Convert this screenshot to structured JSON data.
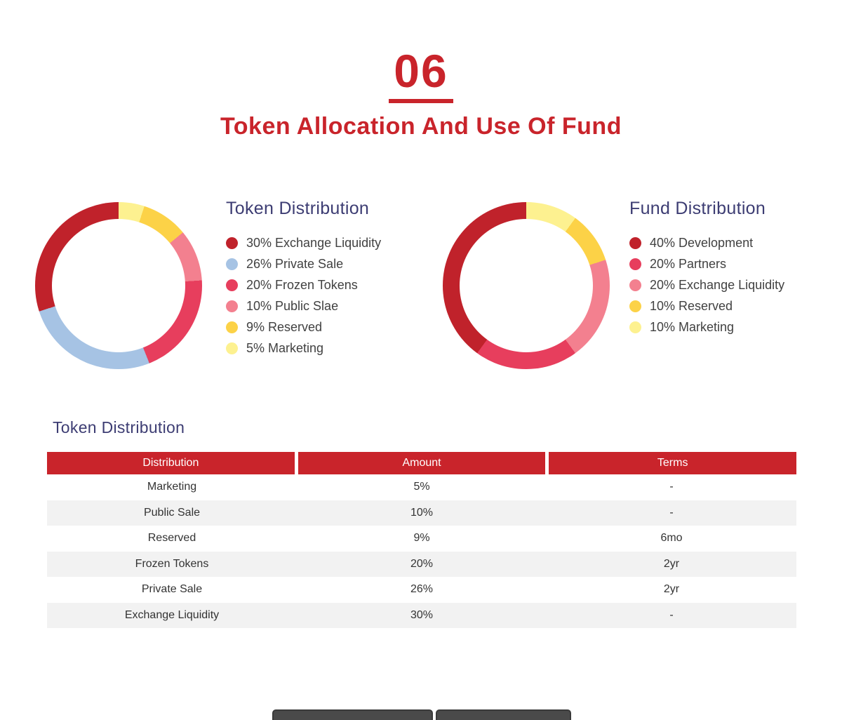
{
  "header": {
    "section_number": "06",
    "title": "Token Allocation And Use Of Fund"
  },
  "colors": {
    "accent_red": "#c9242b",
    "heading_navy": "#3d3d73",
    "legend_text": "#414141",
    "table_header_bg": "#c9242b",
    "table_row_alt_bg": "#f2f2f2",
    "footer_button_gray": "#4a4a4a"
  },
  "chart_data": [
    {
      "type": "pie",
      "subtype": "donut",
      "title": "Token Distribution",
      "legend_position": "right",
      "arc_note": "segments drawn clockwise from 12 o'clock in reverse legend order (smallest first)",
      "segments": [
        {
          "label": "Exchange Liquidity",
          "value": 30,
          "color": "#c0222b"
        },
        {
          "label": "Private Sale",
          "value": 26,
          "color": "#a6c3e4"
        },
        {
          "label": "Frozen Tokens",
          "value": 20,
          "color": "#e73e5d"
        },
        {
          "label": "Public Slae",
          "value": 10,
          "color": "#f3808f"
        },
        {
          "label": "Reserved",
          "value": 9,
          "color": "#fcd247"
        },
        {
          "label": "Marketing",
          "value": 5,
          "color": "#fdf190"
        }
      ]
    },
    {
      "type": "pie",
      "subtype": "donut",
      "title": "Fund Distribution",
      "legend_position": "right",
      "arc_note": "segments drawn clockwise from 12 o'clock in reverse legend order (smallest first)",
      "segments": [
        {
          "label": "Development",
          "value": 40,
          "color": "#c0222b"
        },
        {
          "label": "Partners",
          "value": 20,
          "color": "#e73e5d"
        },
        {
          "label": "Exchange Liquidity",
          "value": 20,
          "color": "#f3808f"
        },
        {
          "label": "Reserved",
          "value": 10,
          "color": "#fcd247"
        },
        {
          "label": "Marketing",
          "value": 10,
          "color": "#fdf190"
        }
      ]
    }
  ],
  "table_section": {
    "heading": "Token Distribution",
    "columns": [
      "Distribution",
      "Amount",
      "Terms"
    ],
    "rows": [
      [
        "Marketing",
        "5%",
        "-"
      ],
      [
        "Public Sale",
        "10%",
        "-"
      ],
      [
        "Reserved",
        "9%",
        "6mo"
      ],
      [
        "Frozen Tokens",
        "20%",
        "2yr"
      ],
      [
        "Private Sale",
        "26%",
        "2yr"
      ],
      [
        "Exchange Liquidity",
        "30%",
        "-"
      ]
    ]
  }
}
